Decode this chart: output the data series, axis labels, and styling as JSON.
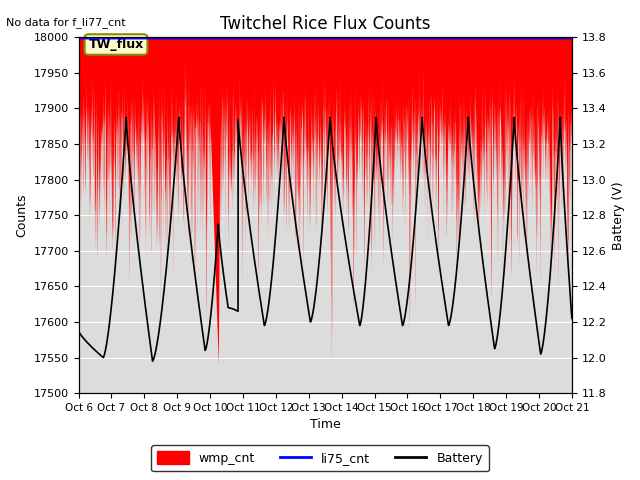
{
  "title": "Twitchel Rice Flux Counts",
  "no_data_text": "No data for f_li77_cnt",
  "tw_flux_label": "TW_flux",
  "xlabel": "Time",
  "ylabel_left": "Counts",
  "ylabel_right": "Battery (V)",
  "ylim_left": [
    17500,
    18000
  ],
  "ylim_right": [
    11.8,
    13.8
  ],
  "xlim": [
    0,
    15
  ],
  "x_tick_labels": [
    "Oct 6",
    "Oct 7",
    "Oct 8",
    "Oct 9",
    "Oct 10",
    "Oct 11",
    "Oct 12",
    "Oct 13",
    "Oct 14",
    "Oct 15",
    "Oct 16",
    "Oct 17",
    "Oct 18",
    "Oct 19",
    "Oct 20",
    "Oct 21"
  ],
  "x_tick_positions": [
    0,
    1,
    2,
    3,
    4,
    5,
    6,
    7,
    8,
    9,
    10,
    11,
    12,
    13,
    14,
    15
  ],
  "wmp_cnt_color": "#FF0000",
  "li75_cnt_color": "#0000FF",
  "battery_color": "#000000",
  "plot_bg_color": "#DCDCDC",
  "grid_color": "#FFFFFF",
  "legend_entries": [
    "wmp_cnt",
    "li75_cnt",
    "Battery"
  ],
  "wmp_top": 18000,
  "wmp_floor_base": 17880,
  "wmp_floor_noise": 30,
  "wmp_spike_down_amp": 120,
  "wmp_spike_freq": 80,
  "li75_value": 17998,
  "wmp_big_dip_x": 4.25,
  "wmp_big_dip_val": 17540,
  "battery_cycles": [
    {
      "start_x": 0.0,
      "start_v": 12.15,
      "min_x": 0.75,
      "min_v": 12.0,
      "end_x": 1.45,
      "end_v": 13.35
    },
    {
      "start_x": 1.45,
      "start_v": 13.35,
      "min_x": 2.25,
      "min_v": 11.98,
      "end_x": 3.05,
      "end_v": 13.35
    },
    {
      "start_x": 3.05,
      "start_v": 13.35,
      "min_x": 3.85,
      "min_v": 12.04,
      "end_x": 4.25,
      "end_v": 12.75
    },
    {
      "start_x": 4.25,
      "start_v": 12.75,
      "min_x": 4.55,
      "min_v": 12.28,
      "end_x": 4.85,
      "end_v": 12.26
    },
    {
      "start_x": 4.85,
      "start_v": 13.35,
      "min_x": 5.65,
      "min_v": 12.18,
      "end_x": 6.25,
      "end_v": 13.35
    },
    {
      "start_x": 6.25,
      "start_v": 13.35,
      "min_x": 7.05,
      "min_v": 12.2,
      "end_x": 7.65,
      "end_v": 13.35
    },
    {
      "start_x": 7.65,
      "start_v": 13.35,
      "min_x": 8.55,
      "min_v": 12.18,
      "end_x": 9.05,
      "end_v": 13.35
    },
    {
      "start_x": 9.05,
      "start_v": 13.35,
      "min_x": 9.85,
      "min_v": 12.18,
      "end_x": 10.45,
      "end_v": 13.35
    },
    {
      "start_x": 10.45,
      "start_v": 13.35,
      "min_x": 11.25,
      "min_v": 12.18,
      "end_x": 11.85,
      "end_v": 13.35
    },
    {
      "start_x": 11.85,
      "start_v": 13.35,
      "min_x": 12.65,
      "min_v": 12.05,
      "end_x": 13.25,
      "end_v": 13.35
    },
    {
      "start_x": 13.25,
      "start_v": 13.35,
      "min_x": 14.05,
      "min_v": 12.02,
      "end_x": 14.65,
      "end_v": 13.35
    },
    {
      "start_x": 14.65,
      "start_v": 13.35,
      "min_x": 15.0,
      "min_v": 12.22,
      "end_x": 15.0,
      "end_v": 12.22
    }
  ]
}
